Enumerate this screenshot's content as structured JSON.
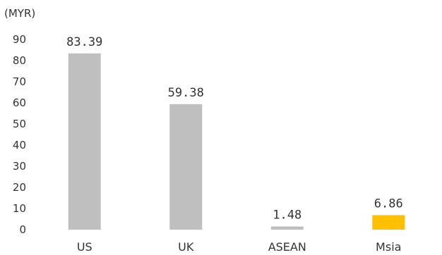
{
  "chart_data": {
    "type": "bar",
    "unit_label": "(MYR)",
    "categories": [
      "US",
      "UK",
      "ASEAN",
      "Msia"
    ],
    "values": [
      83.39,
      59.38,
      1.48,
      6.86
    ],
    "data_labels": [
      "83.39",
      "59.38",
      "1.48",
      "6.86"
    ],
    "bar_colors": [
      "#bfbfbf",
      "#bfbfbf",
      "#bfbfbf",
      "#ffc000"
    ],
    "ylim": [
      0,
      90
    ],
    "yticks": [
      0,
      10,
      20,
      30,
      40,
      50,
      60,
      70,
      80,
      90
    ],
    "grid": false,
    "legend": "none"
  }
}
